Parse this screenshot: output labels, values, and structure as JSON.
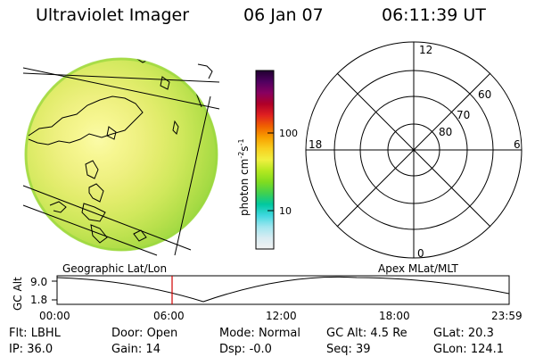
{
  "header": {
    "instrument": "Ultraviolet Imager",
    "date": "06 Jan 07",
    "time": "06:11:39 UT"
  },
  "colorbar": {
    "unit_label": "photon cm",
    "unit_sup1": "-2",
    "unit_mid": "s",
    "unit_sup2": "-1",
    "ticks": [
      {
        "value": 100,
        "label": "100"
      },
      {
        "value": 10,
        "label": "10"
      }
    ],
    "colors": [
      "#f2f2f2",
      "#d8ecf2",
      "#a0e6ef",
      "#40d8e0",
      "#00c8a0",
      "#40d050",
      "#80dc20",
      "#b4e820",
      "#f0f040",
      "#f8d020",
      "#f8a000",
      "#f06000",
      "#e02020",
      "#b00028",
      "#880060",
      "#500060",
      "#200030"
    ]
  },
  "image_panel": {
    "label": "Geographic Lat/Lon",
    "disk_colors": [
      "#fbfba8",
      "#f6f690",
      "#eef080",
      "#e2ec6c",
      "#d0e85c",
      "#b8e04c",
      "#9cd840"
    ]
  },
  "polar_plot": {
    "label": "Apex MLat/MLT",
    "mlt_labels": [
      {
        "name": "mlt-12",
        "text": "12"
      },
      {
        "name": "mlt-18",
        "text": "18"
      },
      {
        "name": "mlt-6",
        "text": "6"
      },
      {
        "name": "mlt-0",
        "text": "0"
      }
    ],
    "lat_labels": [
      {
        "name": "mlat-60",
        "text": "60"
      },
      {
        "name": "mlat-70",
        "text": "70"
      },
      {
        "name": "mlat-80",
        "text": "80"
      }
    ]
  },
  "orbit_plot": {
    "ylabel": "GC Alt",
    "yticks": [
      "9.0",
      "1.8"
    ],
    "xticks": [
      "00:00",
      "06:00",
      "12:00",
      "18:00",
      "23:59"
    ],
    "current_time": "06:11",
    "accent_color": "#d00000"
  },
  "status": {
    "filter": {
      "label": "Flt:",
      "value": "LBHL"
    },
    "ip": {
      "label": "IP:",
      "value": "36.0"
    },
    "door": {
      "label": "Door:",
      "value": "Open"
    },
    "gain": {
      "label": "Gain:",
      "value": "14"
    },
    "mode": {
      "label": "Mode:",
      "value": "Normal"
    },
    "dsp": {
      "label": "Dsp:",
      "value": "-0.0"
    },
    "gc_alt": {
      "label": "GC Alt:",
      "value": "4.5 Re"
    },
    "seq": {
      "label": "Seq:",
      "value": "39"
    },
    "glat": {
      "label": "GLat:",
      "value": "20.3"
    },
    "glon": {
      "label": "GLon:",
      "value": "124.1"
    }
  }
}
